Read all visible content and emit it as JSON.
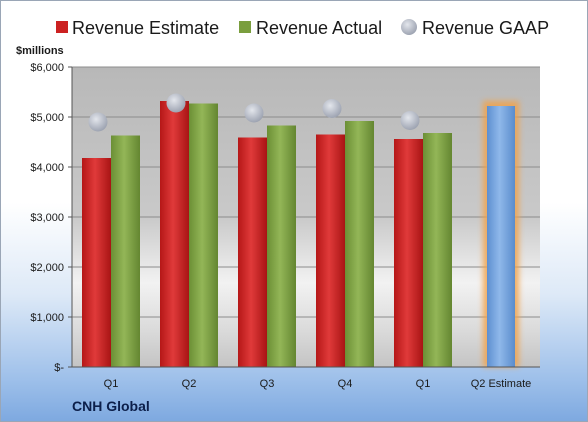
{
  "chart_data": {
    "type": "bar",
    "company": "CNH Global",
    "unit_label": "$millions",
    "categories": [
      "Q1",
      "Q2",
      "Q3",
      "Q4",
      "Q1",
      "Q2 Estimate"
    ],
    "series": [
      {
        "name": "Revenue Estimate",
        "color": "#cc2121",
        "values": [
          4180,
          5320,
          4590,
          4650,
          4560,
          null
        ]
      },
      {
        "name": "Revenue Actual",
        "color": "#7a9e3e",
        "values": [
          4630,
          5270,
          4830,
          4920,
          4680,
          null
        ]
      },
      {
        "name": "Revenue GAAP",
        "color": "#b7bcc8",
        "values": [
          4900,
          5280,
          5080,
          5170,
          4930,
          null
        ]
      }
    ],
    "estimate_bar": {
      "category": "Q2 Estimate",
      "value": 5220,
      "color": "#6f9fdb",
      "glow_color": "#f2a24a"
    },
    "yticks": [
      0,
      1000,
      2000,
      3000,
      4000,
      5000,
      6000
    ],
    "ytick_labels": [
      "$-",
      "$1,000",
      "$2,000",
      "$3,000",
      "$4,000",
      "$5,000",
      "$6,000"
    ],
    "ylim": [
      0,
      6000
    ],
    "grid": true,
    "legend_position": "top"
  }
}
